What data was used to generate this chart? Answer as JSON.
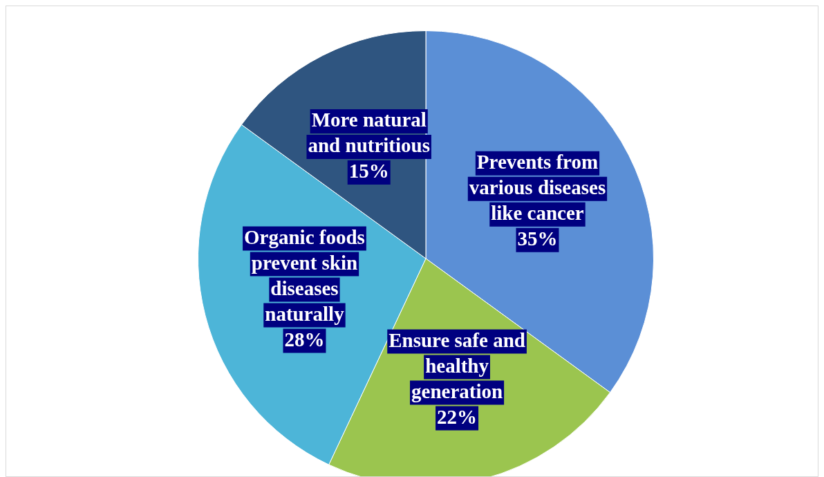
{
  "chart_data": {
    "type": "pie",
    "categories": [
      "Prevents from various diseases like cancer",
      "Ensure safe and healthy generation",
      "Organic foods prevent skin diseases naturally",
      "More natural and nutritious"
    ],
    "values": [
      35,
      22,
      28,
      15
    ],
    "value_labels": [
      "35%",
      "22%",
      "28%",
      "15%"
    ],
    "colors": [
      "#5b8fd6",
      "#9bc54f",
      "#4db5d8",
      "#2f5580"
    ],
    "legend": false
  }
}
